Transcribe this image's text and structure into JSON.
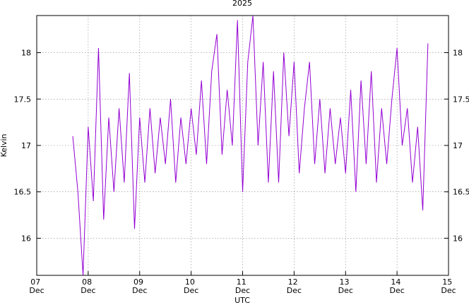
{
  "chart_data": {
    "type": "line",
    "title": "2025",
    "xlabel": "UTC",
    "ylabel": "Kelvin",
    "x": [
      7.7,
      7.8,
      7.9,
      8.0,
      8.1,
      8.2,
      8.3,
      8.4,
      8.5,
      8.6,
      8.7,
      8.8,
      8.9,
      9.0,
      9.1,
      9.2,
      9.3,
      9.4,
      9.5,
      9.6,
      9.7,
      9.8,
      9.9,
      10.0,
      10.1,
      10.2,
      10.3,
      10.4,
      10.5,
      10.6,
      10.7,
      10.8,
      10.9,
      11.0,
      11.1,
      11.2,
      11.3,
      11.4,
      11.5,
      11.6,
      11.7,
      11.8,
      11.9,
      12.0,
      12.1,
      12.2,
      12.3,
      12.4,
      12.5,
      12.6,
      12.7,
      12.8,
      12.9,
      13.0,
      13.1,
      13.2,
      13.3,
      13.4,
      13.5,
      13.6,
      13.7,
      13.8,
      13.9,
      14.0,
      14.1,
      14.2,
      14.3,
      14.4,
      14.5,
      14.6
    ],
    "series": [
      {
        "color": "#9400d3",
        "values": [
          17.1,
          16.5,
          15.6,
          17.2,
          16.4,
          18.05,
          16.2,
          17.3,
          16.5,
          17.4,
          16.6,
          17.78,
          16.1,
          17.3,
          16.6,
          17.4,
          16.7,
          17.3,
          16.8,
          17.5,
          16.6,
          17.3,
          16.8,
          17.4,
          16.9,
          17.7,
          16.8,
          17.8,
          18.2,
          16.9,
          17.6,
          17.0,
          18.35,
          16.5,
          17.9,
          18.4,
          17.0,
          17.9,
          16.6,
          17.8,
          16.6,
          18.0,
          17.1,
          17.9,
          16.7,
          17.4,
          17.9,
          16.8,
          17.5,
          16.7,
          17.4,
          16.8,
          17.3,
          16.7,
          17.6,
          16.5,
          17.7,
          16.8,
          17.8,
          16.6,
          17.4,
          16.8,
          17.5,
          18.05,
          17.0,
          17.4,
          16.6,
          17.2,
          16.3,
          18.1
        ]
      }
    ],
    "xlim": [
      7,
      15
    ],
    "xticks": [
      {
        "value": 7,
        "label": "07 Dec"
      },
      {
        "value": 8,
        "label": "08 Dec"
      },
      {
        "value": 9,
        "label": "09 Dec"
      },
      {
        "value": 10,
        "label": "10 Dec"
      },
      {
        "value": 11,
        "label": "11 Dec"
      },
      {
        "value": 12,
        "label": "12 Dec"
      },
      {
        "value": 13,
        "label": "13 Dec"
      },
      {
        "value": 14,
        "label": "14 Dec"
      },
      {
        "value": 15,
        "label": "15 Dec"
      }
    ],
    "ylim": [
      15.6,
      18.4
    ],
    "yticks": [
      16,
      16.5,
      17,
      17.5,
      18
    ],
    "grid": true
  }
}
